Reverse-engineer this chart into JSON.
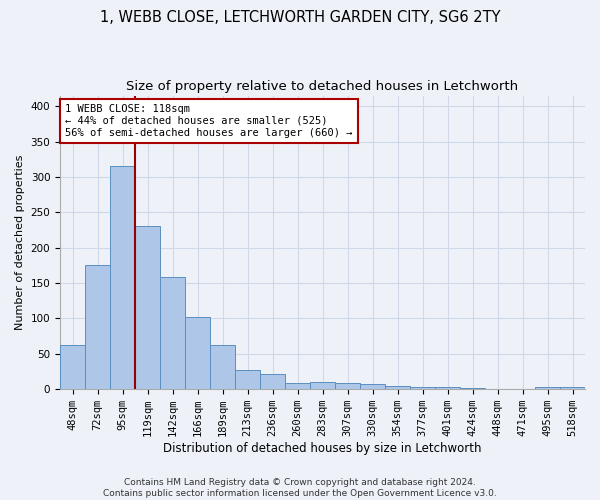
{
  "title": "1, WEBB CLOSE, LETCHWORTH GARDEN CITY, SG6 2TY",
  "subtitle": "Size of property relative to detached houses in Letchworth",
  "xlabel": "Distribution of detached houses by size in Letchworth",
  "ylabel": "Number of detached properties",
  "bar_labels": [
    "48sqm",
    "72sqm",
    "95sqm",
    "119sqm",
    "142sqm",
    "166sqm",
    "189sqm",
    "213sqm",
    "236sqm",
    "260sqm",
    "283sqm",
    "307sqm",
    "330sqm",
    "354sqm",
    "377sqm",
    "401sqm",
    "424sqm",
    "448sqm",
    "471sqm",
    "495sqm",
    "518sqm"
  ],
  "bar_values": [
    62,
    175,
    315,
    230,
    158,
    102,
    62,
    27,
    21,
    9,
    10,
    9,
    7,
    5,
    3,
    3,
    2,
    1,
    1,
    3,
    3
  ],
  "bar_color": "#aec6e8",
  "bar_edge_color": "#5a8fc0",
  "grid_color": "#d0d8e8",
  "background_color": "#eef2f8",
  "red_line_index": 3,
  "annotation_line1": "1 WEBB CLOSE: 118sqm",
  "annotation_line2": "← 44% of detached houses are smaller (525)",
  "annotation_line3": "56% of semi-detached houses are larger (660) →",
  "annotation_box_color": "#ffffff",
  "footer_line1": "Contains HM Land Registry data © Crown copyright and database right 2024.",
  "footer_line2": "Contains public sector information licensed under the Open Government Licence v3.0.",
  "ylim": [
    0,
    415
  ],
  "yticks": [
    0,
    50,
    100,
    150,
    200,
    250,
    300,
    350,
    400
  ],
  "title_fontsize": 10.5,
  "subtitle_fontsize": 9.5,
  "xlabel_fontsize": 8.5,
  "ylabel_fontsize": 8,
  "tick_fontsize": 7.5,
  "footer_fontsize": 6.5,
  "annotation_fontsize": 7.5
}
